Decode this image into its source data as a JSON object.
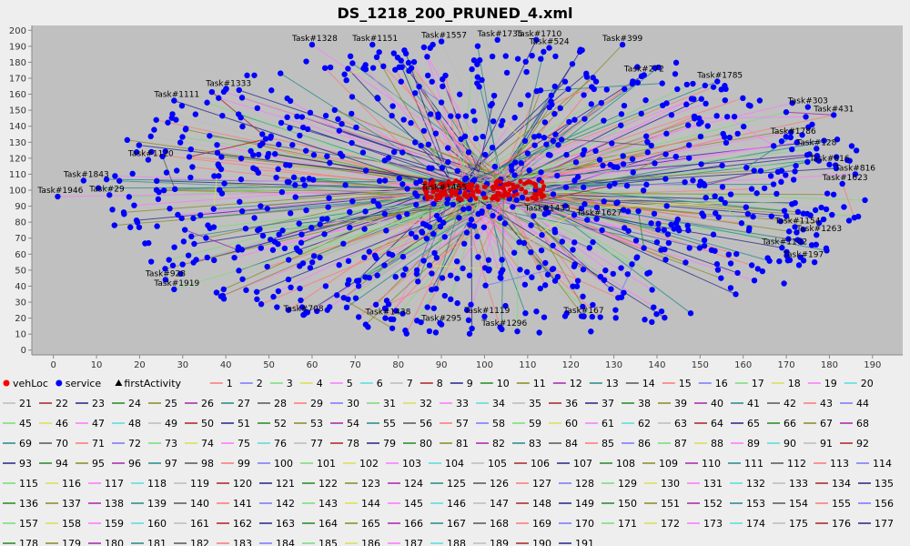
{
  "chart_data": {
    "type": "scatter",
    "title": "DS_1218_200_PRUNED_4.xml",
    "xlabel": "",
    "ylabel": "",
    "xlim": [
      -5,
      197
    ],
    "ylim": [
      -3,
      203
    ],
    "x_ticks": [
      0,
      10,
      20,
      30,
      40,
      50,
      60,
      70,
      80,
      90,
      100,
      110,
      120,
      130,
      140,
      150,
      160,
      170,
      180,
      190
    ],
    "y_ticks": [
      0,
      10,
      20,
      30,
      40,
      50,
      60,
      70,
      80,
      90,
      100,
      110,
      120,
      130,
      140,
      150,
      160,
      170,
      180,
      190,
      200
    ],
    "legend": {
      "position": "bottom"
    },
    "marker_series": [
      {
        "name": "vehLoc",
        "marker": "circle",
        "color": "#ff0000"
      },
      {
        "name": "service",
        "marker": "circle",
        "color": "#0000ff"
      },
      {
        "name": "firstActivity",
        "marker": "triangle",
        "color": "#000000"
      }
    ],
    "route_count": 191,
    "route_colors": [
      "#ff7777",
      "#7777ff",
      "#77dd77",
      "#dddd55",
      "#ff77ff",
      "#55dddd",
      "#bbbbbb",
      "#aa2222",
      "#222288",
      "#228822",
      "#888822",
      "#aa22aa",
      "#228888",
      "#555555"
    ],
    "depot": {
      "x": 100,
      "y": 100
    },
    "labeled_points": [
      {
        "label": "Task#1328",
        "x": 60,
        "y": 191
      },
      {
        "label": "Task#1151",
        "x": 74,
        "y": 191
      },
      {
        "label": "Task#1557",
        "x": 90,
        "y": 193
      },
      {
        "label": "Task#1735",
        "x": 103,
        "y": 194
      },
      {
        "label": "Task#1710",
        "x": 112,
        "y": 194
      },
      {
        "label": "Task#524",
        "x": 115,
        "y": 189
      },
      {
        "label": "Task#399",
        "x": 132,
        "y": 191
      },
      {
        "label": "Task#272",
        "x": 137,
        "y": 172
      },
      {
        "label": "Task#1785",
        "x": 154,
        "y": 168
      },
      {
        "label": "Task#303",
        "x": 175,
        "y": 152
      },
      {
        "label": "Task#431",
        "x": 181,
        "y": 147
      },
      {
        "label": "Task#1786",
        "x": 171,
        "y": 133
      },
      {
        "label": "Task#128",
        "x": 177,
        "y": 126
      },
      {
        "label": "Task#616",
        "x": 180,
        "y": 116
      },
      {
        "label": "Task#816",
        "x": 186,
        "y": 110
      },
      {
        "label": "Task#1623",
        "x": 183,
        "y": 104
      },
      {
        "label": "Task#1154",
        "x": 172,
        "y": 77
      },
      {
        "label": "Task#1263",
        "x": 177,
        "y": 72
      },
      {
        "label": "Task#1102",
        "x": 169,
        "y": 64
      },
      {
        "label": "Task#197",
        "x": 174,
        "y": 56
      },
      {
        "label": "Task#167",
        "x": 123,
        "y": 21
      },
      {
        "label": "Task#1119",
        "x": 100,
        "y": 21
      },
      {
        "label": "Task#1296",
        "x": 104,
        "y": 13
      },
      {
        "label": "Task#295",
        "x": 90,
        "y": 16
      },
      {
        "label": "Task#1438",
        "x": 77,
        "y": 20
      },
      {
        "label": "Task#708",
        "x": 58,
        "y": 22
      },
      {
        "label": "Task#1919",
        "x": 28,
        "y": 38
      },
      {
        "label": "Task#928",
        "x": 26,
        "y": 44
      },
      {
        "label": "Task#1946",
        "x": 1,
        "y": 96
      },
      {
        "label": "Task#29",
        "x": 13,
        "y": 97
      },
      {
        "label": "Task#1843",
        "x": 7,
        "y": 106
      },
      {
        "label": "Task#1120",
        "x": 22,
        "y": 119
      },
      {
        "label": "Task#1111",
        "x": 28,
        "y": 156
      },
      {
        "label": "Task#1333",
        "x": 40,
        "y": 163
      },
      {
        "label": "Task#1465",
        "x": 90,
        "y": 98
      },
      {
        "label": "Task#1433",
        "x": 114,
        "y": 85
      },
      {
        "label": "Task#1627",
        "x": 126,
        "y": 82
      }
    ]
  }
}
